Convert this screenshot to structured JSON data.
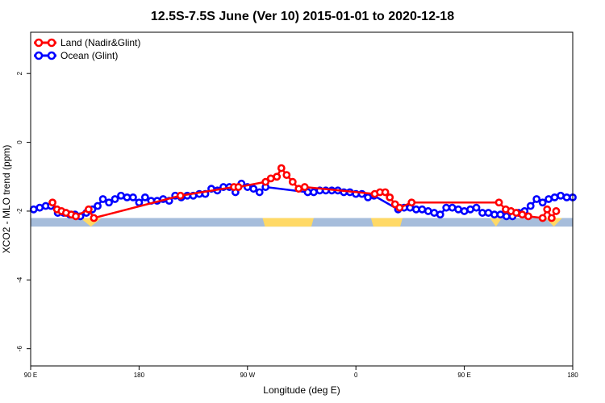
{
  "chart_data": {
    "type": "line",
    "title": "12.5S-7.5S June (Ver 10)   2015-01-01 to 2020-12-18",
    "xlabel": "Longitude (deg E)",
    "ylabel": "XCO2 - MLO trend (ppm)",
    "xlim": [
      90,
      450
    ],
    "ylim": [
      -6.5,
      3.2
    ],
    "x_ticks": [
      {
        "value": 90,
        "label": "90 E"
      },
      {
        "value": 162,
        "label": "180"
      },
      {
        "value": 234,
        "label": "90 W"
      },
      {
        "value": 306,
        "label": "0"
      },
      {
        "value": 378,
        "label": "90 E"
      },
      {
        "value": 450,
        "label": "180"
      }
    ],
    "y_ticks": [
      {
        "value": 2,
        "label": "2"
      },
      {
        "value": 0,
        "label": "0"
      },
      {
        "value": -2,
        "label": "-2"
      },
      {
        "value": -4,
        "label": "-4"
      },
      {
        "value": -6,
        "label": "-6"
      }
    ],
    "band": {
      "y_range": [
        -2.45,
        -2.2
      ],
      "ocean_color": "#a6bddb",
      "land_color": "#ffd966",
      "land_segments": [
        [
          244,
          278
        ],
        [
          316,
          337
        ]
      ],
      "land_wedges": [
        [
          123,
          137
        ],
        [
          395,
          403
        ],
        [
          432,
          443
        ]
      ]
    },
    "legend": {
      "position": "top-left",
      "entries": [
        {
          "name": "Land (Nadir&Glint)",
          "color": "#ff0000"
        },
        {
          "name": "Ocean (Glint)",
          "color": "#0000ff"
        }
      ]
    },
    "series": [
      {
        "name": "Land (Nadir&Glint)",
        "color": "#ff0000",
        "x": [
          104.5,
          107.5,
          110.5,
          113.5,
          117,
          120,
          128.5,
          132,
          189.5,
          225,
          228,
          246,
          249.5,
          253.5,
          256.5,
          260,
          264,
          268,
          272,
          318.5,
          322,
          325.5,
          328.5,
          332,
          335,
          343,
          401,
          405.5,
          409,
          412.5,
          416.5,
          420.5,
          430,
          433,
          436,
          439
        ],
        "y": [
          -1.75,
          -1.95,
          -2.0,
          -2.05,
          -2.1,
          -2.15,
          -1.95,
          -2.2,
          -1.55,
          -1.3,
          -1.3,
          -1.15,
          -1.05,
          -1.0,
          -0.75,
          -0.95,
          -1.15,
          -1.35,
          -1.3,
          -1.5,
          -1.45,
          -1.45,
          -1.6,
          -1.8,
          -1.9,
          -1.75,
          -1.75,
          -1.95,
          -2.0,
          -2.05,
          -2.1,
          -2.15,
          -2.2,
          -1.95,
          -2.2,
          -2.0
        ]
      },
      {
        "name": "Ocean (Glint)",
        "color": "#0000ff",
        "x": [
          92,
          96,
          100,
          103.5,
          108,
          112,
          116,
          119.5,
          123,
          127,
          131,
          134.5,
          138,
          142,
          146,
          150,
          154,
          158,
          162,
          166,
          170,
          174,
          178,
          182,
          186,
          190,
          194,
          198,
          202,
          206,
          210,
          214,
          218,
          222,
          226,
          230,
          234,
          238,
          242,
          246,
          274,
          278,
          282,
          286,
          290,
          294,
          298,
          302,
          306,
          310,
          314,
          318,
          334,
          338,
          342,
          346,
          350,
          354,
          358,
          362,
          366,
          370,
          374,
          378,
          382,
          386,
          390,
          394,
          398,
          402,
          406,
          410,
          414,
          418,
          422,
          426,
          430,
          434,
          438,
          442,
          446,
          450
        ],
        "y": [
          -1.95,
          -1.9,
          -1.85,
          -1.85,
          -2.05,
          -2.05,
          -2.1,
          -2.1,
          -2.15,
          -2.05,
          -1.95,
          -1.85,
          -1.65,
          -1.75,
          -1.65,
          -1.55,
          -1.6,
          -1.6,
          -1.75,
          -1.6,
          -1.7,
          -1.7,
          -1.65,
          -1.7,
          -1.55,
          -1.6,
          -1.55,
          -1.55,
          -1.5,
          -1.5,
          -1.35,
          -1.4,
          -1.3,
          -1.3,
          -1.45,
          -1.2,
          -1.3,
          -1.35,
          -1.45,
          -1.3,
          -1.45,
          -1.45,
          -1.4,
          -1.4,
          -1.4,
          -1.4,
          -1.45,
          -1.45,
          -1.5,
          -1.5,
          -1.6,
          -1.55,
          -1.95,
          -1.9,
          -1.9,
          -1.95,
          -1.95,
          -2.0,
          -2.05,
          -2.1,
          -1.9,
          -1.9,
          -1.95,
          -2.0,
          -1.95,
          -1.9,
          -2.05,
          -2.05,
          -2.1,
          -2.1,
          -2.15,
          -2.15,
          -2.05,
          -2.0,
          -1.85,
          -1.65,
          -1.75,
          -1.65,
          -1.6,
          -1.55,
          -1.6,
          -1.6
        ]
      }
    ]
  }
}
